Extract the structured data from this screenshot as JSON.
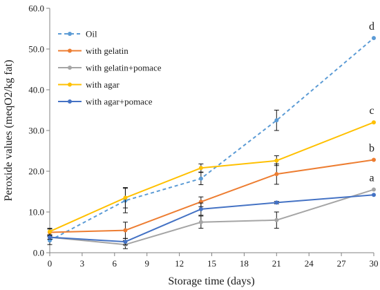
{
  "chart_data": {
    "type": "line",
    "xlabel": "Storage time (days)",
    "ylabel": "Peroxide values (meqO2/kg fat)",
    "xlim": [
      0,
      30
    ],
    "ylim": [
      0,
      60
    ],
    "x_ticks": [
      0,
      3,
      6,
      9,
      12,
      15,
      18,
      21,
      24,
      27,
      30
    ],
    "x_tick_labels": [
      "0",
      "3",
      "6",
      "9",
      "12",
      "15",
      "18",
      "21",
      "24",
      "27",
      "30"
    ],
    "y_ticks": [
      0,
      10,
      20,
      30,
      40,
      50,
      60
    ],
    "y_tick_labels": [
      "0.0",
      "10.0",
      "20.0",
      "30.0",
      "40.0",
      "50.0",
      "60.0"
    ],
    "grid": false,
    "legend_position": "top-left",
    "x": [
      0,
      7,
      14,
      21,
      30
    ],
    "series": [
      {
        "name": "Oil",
        "color": "#5b9bd5",
        "dashed": true,
        "values": [
          3.0,
          12.8,
          18.2,
          32.5,
          52.7
        ],
        "errors": [
          1.0,
          3.0,
          1.5,
          2.5,
          0
        ]
      },
      {
        "name": "with gelatin",
        "color": "#ed7d31",
        "dashed": false,
        "values": [
          5.0,
          5.5,
          12.5,
          19.3,
          22.8
        ],
        "errors": [
          0.8,
          2.0,
          1.2,
          2.5,
          0
        ]
      },
      {
        "name": "with gelatin+pomace",
        "color": "#a5a5a5",
        "dashed": false,
        "values": [
          3.8,
          2.0,
          7.5,
          8.0,
          15.5
        ],
        "errors": [
          0.5,
          1.0,
          1.5,
          2.0,
          0
        ]
      },
      {
        "name": "with agar",
        "color": "#ffc000",
        "dashed": false,
        "values": [
          5.2,
          13.5,
          20.8,
          22.6,
          32.0
        ],
        "errors": [
          0.8,
          2.5,
          1.0,
          1.2,
          0
        ]
      },
      {
        "name": "with agar+pomace",
        "color": "#4472c4",
        "dashed": false,
        "values": [
          3.8,
          2.7,
          10.7,
          12.3,
          14.2
        ],
        "errors": [
          0.5,
          0.8,
          1.5,
          0.3,
          0
        ]
      }
    ],
    "annotations": [
      {
        "text": "d",
        "x": 30,
        "y": 52.7
      },
      {
        "text": "c",
        "x": 30,
        "y": 32.0
      },
      {
        "text": "b",
        "x": 30,
        "y": 22.8
      },
      {
        "text": "a",
        "x": 30,
        "y": 15.5
      }
    ]
  }
}
